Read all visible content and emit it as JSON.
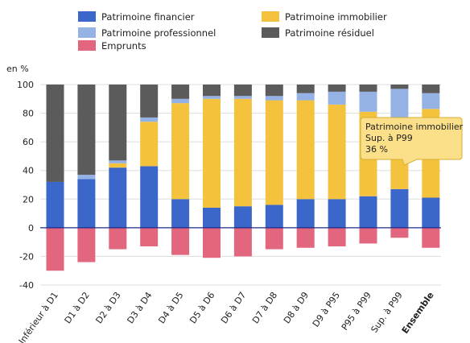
{
  "chart_data": {
    "type": "bar",
    "stacked": true,
    "ylabel": "en %",
    "ylim": [
      -40,
      100
    ],
    "yticks": [
      -40,
      -20,
      0,
      20,
      40,
      60,
      80,
      100
    ],
    "grid": true,
    "legend_placement": "top",
    "categories": [
      "Inférieur à D1",
      "D1 à D2",
      "D2 à D3",
      "D3 à D4",
      "D4 à D5",
      "D5 à D6",
      "D6 à D7",
      "D7 à D8",
      "D8 à D9",
      "D9 à P95",
      "P95 à P99",
      "Sup. à P99",
      "Ensemble"
    ],
    "bold_category": "Ensemble",
    "series": [
      {
        "name": "Patrimoine financier",
        "color": "#3a67c9",
        "values": [
          32,
          34,
          42,
          43,
          20,
          14,
          15,
          16,
          20,
          20,
          22,
          27,
          21
        ]
      },
      {
        "name": "Patrimoine immobilier",
        "color": "#f5c23e",
        "values": [
          0,
          0,
          3,
          31,
          67,
          76,
          75,
          73,
          69,
          66,
          59,
          36,
          62
        ]
      },
      {
        "name": "Patrimoine professionnel",
        "color": "#95b2e4",
        "values": [
          0,
          3,
          2,
          3,
          3,
          2,
          2,
          3,
          5,
          9,
          14,
          34,
          11
        ]
      },
      {
        "name": "Patrimoine résiduel",
        "color": "#5b5b5b",
        "values": [
          68,
          63,
          53,
          23,
          10,
          8,
          8,
          8,
          6,
          5,
          5,
          3,
          6
        ]
      },
      {
        "name": "Emprunts",
        "color": "#e2667e",
        "values": [
          -30,
          -24,
          -15,
          -13,
          -19,
          -21,
          -20,
          -15,
          -14,
          -13,
          -11,
          -7,
          -14
        ]
      }
    ],
    "annotation": {
      "lines": [
        "Patrimoine immobilier",
        "Sup. à P99",
        "36 %"
      ],
      "category": "Sup. à P99"
    }
  },
  "legend": [
    {
      "label": "Patrimoine financier",
      "color": "#3a67c9"
    },
    {
      "label": "Patrimoine immobilier",
      "color": "#f5c23e"
    },
    {
      "label": "Patrimoine professionnel",
      "color": "#95b2e4"
    },
    {
      "label": "Patrimoine résiduel",
      "color": "#5b5b5b"
    },
    {
      "label": "Emprunts",
      "color": "#e2667e"
    }
  ]
}
